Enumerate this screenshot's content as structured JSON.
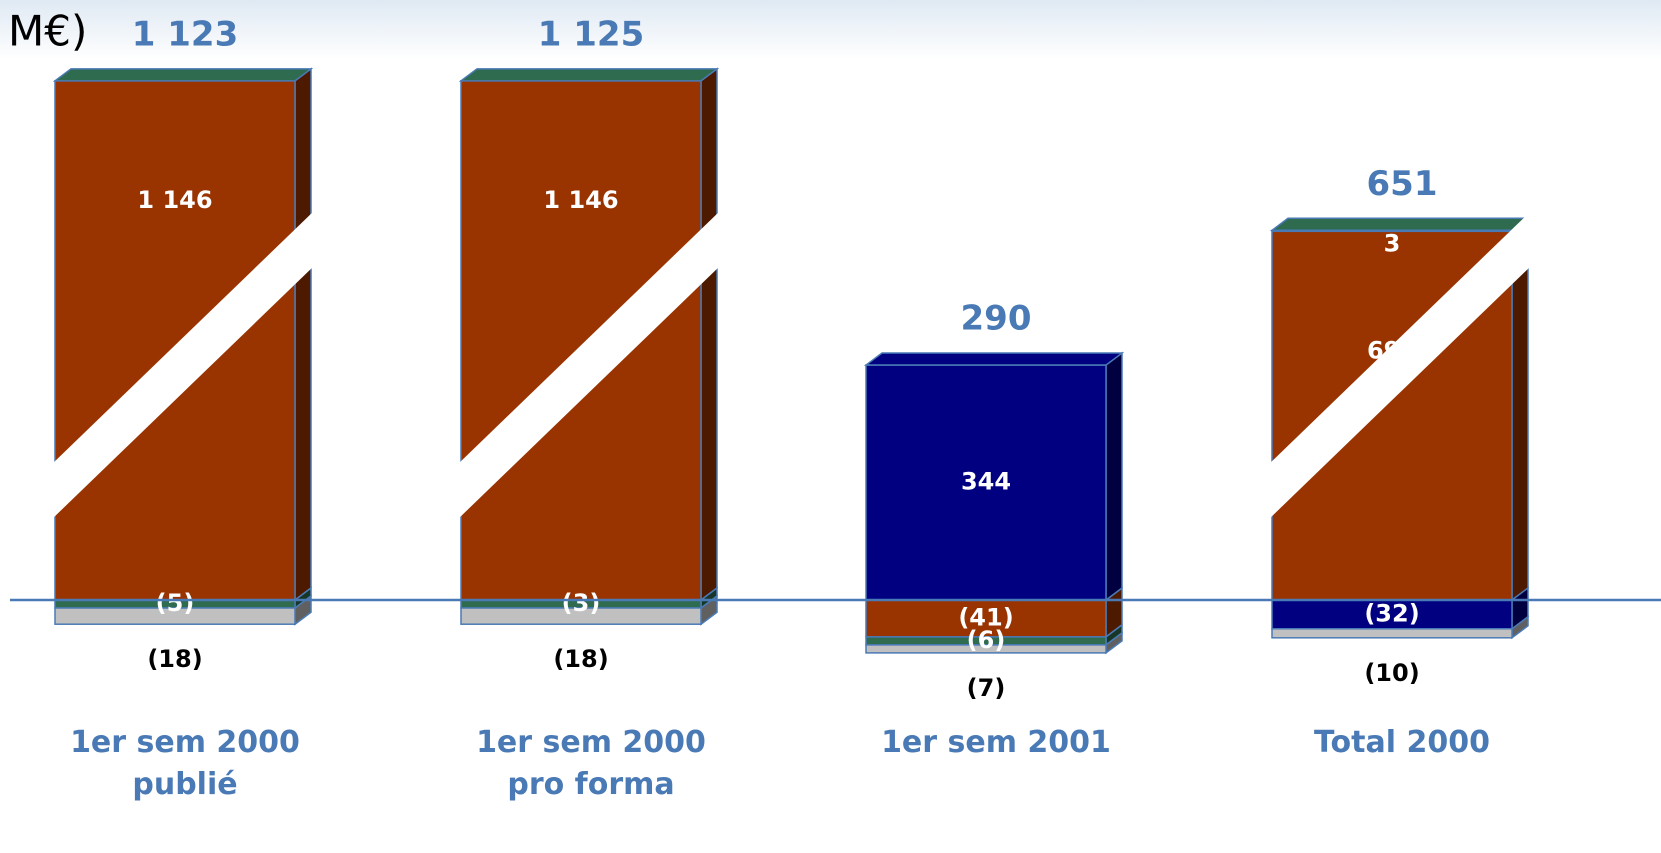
{
  "chart_data": {
    "type": "bar",
    "stacked": true,
    "title": "M€)",
    "categories": [
      "1er sem 2000 publié",
      "1er sem 2000 pro forma",
      "1er sem 2001",
      "Total 2000"
    ],
    "totals": [
      1123,
      1125,
      290,
      651
    ],
    "total_labels": [
      "1 123",
      "1 125",
      "290",
      "651"
    ],
    "series": [
      {
        "color": "#993300",
        "values": [
          1146,
          1146,
          -41,
          690
        ],
        "value_labels": [
          "1 146",
          "1 146",
          "(41)",
          "690"
        ]
      },
      {
        "color": "#000080",
        "values": [
          null,
          null,
          344,
          -32
        ],
        "value_labels": [
          null,
          null,
          "344",
          "(32)"
        ]
      },
      {
        "color": "#2e6b4f",
        "values": [
          -5,
          -3,
          -6,
          3
        ],
        "value_labels": [
          "(5)",
          "(3)",
          "(6)",
          "3"
        ]
      },
      {
        "color": "#c0c0c0",
        "values": [
          -18,
          -18,
          -7,
          -10
        ],
        "value_labels": [
          "(18)",
          "(18)",
          "(7)",
          "(10)"
        ]
      }
    ]
  }
}
